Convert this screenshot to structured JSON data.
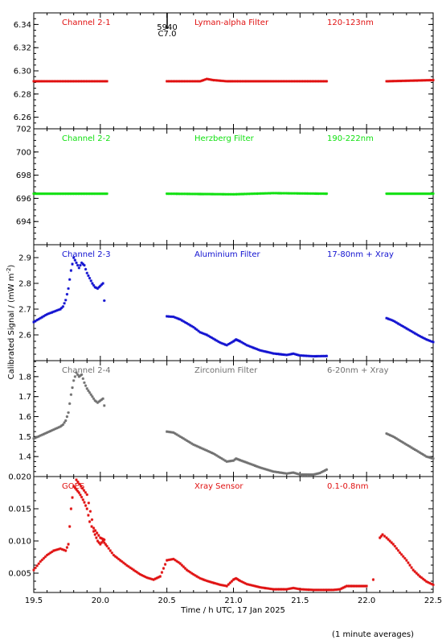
{
  "figure": {
    "ylabel": "Calibrated Signal / (mW m",
    "ylabel_sup": "-2",
    "ylabel_tail": ")",
    "xlabel": "Time / h UTC, 17 Jan 2025",
    "footnote": "(1 minute averages)",
    "marker_label_top": "5940",
    "marker_label_bottom": "C7.0",
    "marker_time": 20.5
  },
  "chart_data": [
    {
      "type": "scatter",
      "channel": "Channel 2-1",
      "filter": "Lyman-alpha Filter",
      "band": "120-123nm",
      "color": "#e01010",
      "ylim": [
        6.25,
        6.35
      ],
      "yticks": [
        6.26,
        6.28,
        6.3,
        6.32,
        6.34
      ],
      "ytick_labels": [
        "6.26",
        "6.28",
        "6.30",
        "6.32",
        "6.34"
      ],
      "segments": [
        {
          "x": [
            19.5,
            20.05
          ],
          "y": [
            6.291,
            6.291
          ]
        },
        {
          "x": [
            20.5,
            20.75,
            20.8,
            20.85,
            20.95,
            21.1,
            21.7
          ],
          "y": [
            6.291,
            6.291,
            6.293,
            6.292,
            6.291,
            6.291,
            6.291
          ]
        },
        {
          "x": [
            22.15,
            22.5
          ],
          "y": [
            6.291,
            6.292
          ]
        }
      ]
    },
    {
      "type": "scatter",
      "channel": "Channel 2-2",
      "filter": "Herzberg Filter",
      "band": "190-222nm",
      "color": "#10e010",
      "ylim": [
        692,
        702
      ],
      "yticks": [
        694,
        696,
        698,
        700,
        702
      ],
      "ytick_labels": [
        "694",
        "696",
        "698",
        "700",
        "702"
      ],
      "segments": [
        {
          "x": [
            19.5,
            20.05
          ],
          "y": [
            696.4,
            696.4
          ]
        },
        {
          "x": [
            20.5,
            21.0,
            21.3,
            21.7
          ],
          "y": [
            696.4,
            696.35,
            696.45,
            696.4
          ]
        },
        {
          "x": [
            22.15,
            22.5
          ],
          "y": [
            696.4,
            696.4
          ]
        }
      ]
    },
    {
      "type": "scatter",
      "channel": "Channel 2-3",
      "filter": "Aluminium Filter",
      "band": "17-80nm + Xray",
      "color": "#1010d0",
      "ylim": [
        2.5,
        2.95
      ],
      "yticks": [
        2.6,
        2.7,
        2.8,
        2.9
      ],
      "ytick_labels": [
        "2.6",
        "2.7",
        "2.8",
        "2.9"
      ],
      "segments": [
        {
          "x": [
            19.5,
            19.55,
            19.6,
            19.65,
            19.7,
            19.72,
            19.74,
            19.76,
            19.78,
            19.8,
            19.82,
            19.84,
            19.86,
            19.88,
            19.9,
            19.92,
            19.94,
            19.96,
            19.98,
            20.0,
            20.02
          ],
          "y": [
            2.65,
            2.665,
            2.68,
            2.69,
            2.7,
            2.71,
            2.735,
            2.78,
            2.85,
            2.9,
            2.88,
            2.86,
            2.88,
            2.87,
            2.84,
            2.82,
            2.8,
            2.785,
            2.78,
            2.79,
            2.8
          ]
        },
        {
          "x": [
            20.03
          ],
          "y": [
            2.733
          ]
        },
        {
          "x": [
            20.5,
            20.55,
            20.6,
            20.65,
            20.7,
            20.75,
            20.8,
            20.85,
            20.9,
            20.95,
            21.0,
            21.02,
            21.05,
            21.1,
            21.2,
            21.3,
            21.4,
            21.45,
            21.5,
            21.6,
            21.7
          ],
          "y": [
            2.672,
            2.67,
            2.66,
            2.645,
            2.63,
            2.61,
            2.6,
            2.585,
            2.57,
            2.56,
            2.575,
            2.582,
            2.575,
            2.56,
            2.54,
            2.528,
            2.522,
            2.527,
            2.52,
            2.517,
            2.518
          ]
        },
        {
          "x": [
            22.15,
            22.2,
            22.25,
            22.3,
            22.35,
            22.4,
            22.45,
            22.5
          ],
          "y": [
            2.665,
            2.655,
            2.64,
            2.625,
            2.61,
            2.595,
            2.582,
            2.572
          ]
        }
      ]
    },
    {
      "type": "scatter",
      "channel": "Channel 2-4",
      "filter": "Zirconium Filter",
      "band": "6-20nm + Xray",
      "color": "#707070",
      "ylim": [
        1.3,
        1.88
      ],
      "yticks": [
        1.4,
        1.5,
        1.6,
        1.7,
        1.8
      ],
      "ytick_labels": [
        "1.4",
        "1.5",
        "1.6",
        "1.7",
        "1.8"
      ],
      "segments": [
        {
          "x": [
            19.5,
            19.55,
            19.6,
            19.65,
            19.7,
            19.72,
            19.74,
            19.76,
            19.78,
            19.8,
            19.82,
            19.84,
            19.86,
            19.88,
            19.9,
            19.92,
            19.94,
            19.96,
            19.98,
            20.0,
            20.02
          ],
          "y": [
            1.49,
            1.505,
            1.52,
            1.535,
            1.55,
            1.56,
            1.58,
            1.62,
            1.71,
            1.78,
            1.82,
            1.8,
            1.81,
            1.77,
            1.74,
            1.72,
            1.7,
            1.68,
            1.67,
            1.68,
            1.69
          ]
        },
        {
          "x": [
            20.03
          ],
          "y": [
            1.655
          ]
        },
        {
          "x": [
            20.5,
            20.55,
            20.6,
            20.65,
            20.7,
            20.75,
            20.8,
            20.85,
            20.9,
            20.95,
            21.0,
            21.02,
            21.05,
            21.1,
            21.2,
            21.3,
            21.4,
            21.45,
            21.5,
            21.6,
            21.65,
            21.7
          ],
          "y": [
            1.525,
            1.52,
            1.5,
            1.48,
            1.46,
            1.445,
            1.43,
            1.415,
            1.395,
            1.375,
            1.38,
            1.39,
            1.382,
            1.37,
            1.345,
            1.325,
            1.315,
            1.32,
            1.31,
            1.31,
            1.318,
            1.335
          ]
        },
        {
          "x": [
            22.15,
            22.2,
            22.25,
            22.3,
            22.35,
            22.4,
            22.45,
            22.5
          ],
          "y": [
            1.515,
            1.5,
            1.48,
            1.46,
            1.44,
            1.42,
            1.4,
            1.39
          ]
        }
      ]
    },
    {
      "type": "scatter",
      "channel": "GOES",
      "filter": "Xray Sensor",
      "band": "0.1-0.8nm",
      "color": "#e01010",
      "ylim": [
        0.002,
        0.02
      ],
      "xlim": [
        19.5,
        22.5
      ],
      "yticks": [
        0.005,
        0.01,
        0.015,
        0.02
      ],
      "ytick_labels": [
        "0.005",
        "0.010",
        "0.015",
        "0.020"
      ],
      "xticks": [
        19.5,
        20.0,
        20.5,
        21.0,
        21.5,
        22.0,
        22.5
      ],
      "xtick_labels": [
        "19.5",
        "20.0",
        "20.5",
        "21.0",
        "21.5",
        "22.0",
        "22.5"
      ],
      "segments": [
        {
          "x": [
            19.5,
            19.55,
            19.6,
            19.65,
            19.7,
            19.74,
            19.76,
            19.78,
            19.8,
            19.82,
            19.84,
            19.86,
            19.88,
            19.9,
            19.92,
            19.95,
            19.98,
            20.0,
            20.02,
            20.05,
            20.1,
            20.15,
            20.2,
            20.25,
            20.3,
            20.35,
            20.4,
            20.45,
            20.5,
            20.55,
            20.6,
            20.65,
            20.7,
            20.75,
            20.8,
            20.85,
            20.9,
            20.95,
            21.0,
            21.02,
            21.05,
            21.1,
            21.2,
            21.3,
            21.4,
            21.45,
            21.5,
            21.6,
            21.7,
            21.75,
            21.8,
            21.85,
            21.9,
            21.95,
            22.0
          ],
          "y": [
            0.0055,
            0.0068,
            0.0078,
            0.0085,
            0.0088,
            0.0085,
            0.0095,
            0.015,
            0.0185,
            0.018,
            0.0175,
            0.0168,
            0.016,
            0.015,
            0.013,
            0.0115,
            0.01,
            0.0095,
            0.01,
            0.0092,
            0.0078,
            0.007,
            0.0062,
            0.0055,
            0.0048,
            0.0043,
            0.004,
            0.0045,
            0.007,
            0.0072,
            0.0065,
            0.0055,
            0.0048,
            0.0042,
            0.0038,
            0.0035,
            0.0032,
            0.003,
            0.004,
            0.0042,
            0.0038,
            0.0033,
            0.0028,
            0.0025,
            0.0025,
            0.0027,
            0.0025,
            0.0024,
            0.0024,
            0.0024,
            0.0025,
            0.003,
            0.003,
            0.003,
            0.003
          ]
        },
        {
          "x": [
            22.05
          ],
          "y": [
            0.004
          ]
        },
        {
          "x": [
            22.1,
            22.12,
            22.15,
            22.2,
            22.25,
            22.3,
            22.35,
            22.4,
            22.45,
            22.5
          ],
          "y": [
            0.0105,
            0.011,
            0.0105,
            0.0095,
            0.0082,
            0.007,
            0.0055,
            0.0045,
            0.0037,
            0.0032
          ]
        },
        {
          "x": [
            19.82,
            19.9,
            19.95,
            20.0,
            20.03
          ],
          "y": [
            0.0195,
            0.0172,
            0.012,
            0.0105,
            0.0102
          ]
        }
      ]
    }
  ]
}
